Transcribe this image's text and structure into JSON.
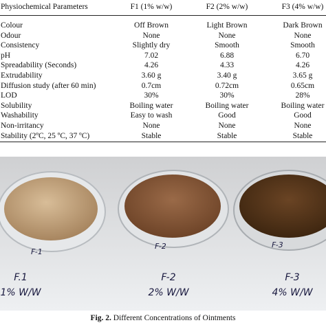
{
  "table": {
    "header": [
      "Physiochemical Parameters",
      "F1 (1% w/w)",
      "F2 (2% w/w)",
      "F3 (4% w/w)"
    ],
    "rows": [
      [
        "Colour",
        "Off Brown",
        "Light Brown",
        "Dark Brown"
      ],
      [
        "Odour",
        "None",
        "None",
        "None"
      ],
      [
        "Consistency",
        "Slightly dry",
        "Smooth",
        "Smooth"
      ],
      [
        "pH",
        "7.02",
        "6.88",
        "6.70"
      ],
      [
        "Spreadability (Seconds)",
        "4.26",
        "4.33",
        "4.26"
      ],
      [
        "Extrudability",
        "3.60 g",
        "3.40 g",
        "3.65 g"
      ],
      [
        "Diffusion study (after 60 min)",
        "0.7cm",
        "0.72cm",
        "0.65cm"
      ],
      [
        "LOD",
        "30%",
        "30%",
        "28%"
      ],
      [
        "Solubility",
        "Boiling water",
        "Boiling water",
        "Boiling water"
      ],
      [
        "Washability",
        "Easy to wash",
        "Good",
        "Good"
      ],
      [
        "Non-irritancy",
        "None",
        "None",
        "None"
      ],
      [
        "Stability (2ºC, 25 ºC, 37 ºC)",
        "Stable",
        "Stable",
        "Stable"
      ]
    ]
  },
  "photo": {
    "dish_labels": [
      "F-1",
      "F-2",
      "F-3"
    ],
    "handwritten": [
      [
        "F.1",
        "1% W/W"
      ],
      [
        "F-2",
        "2% W/W"
      ],
      [
        "F-3",
        "4% W/W"
      ]
    ]
  },
  "caption": {
    "label": "Fig. 2.",
    "text": "Different Concentrations of Ointments"
  }
}
